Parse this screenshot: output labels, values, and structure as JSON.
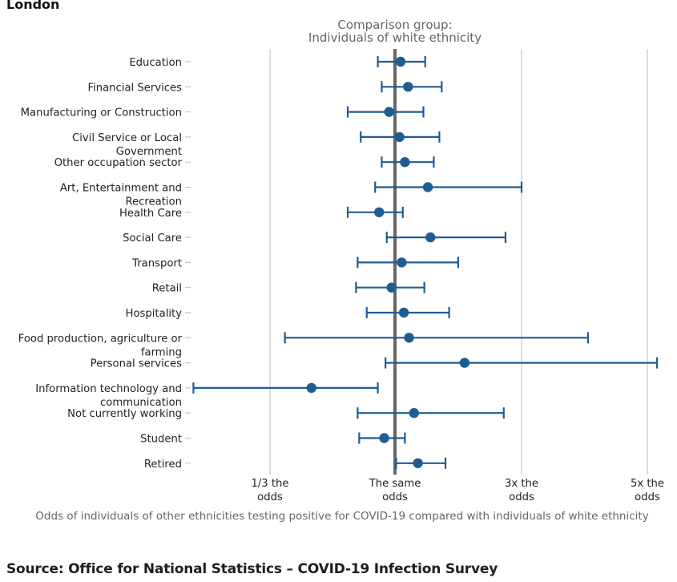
{
  "region_title": "London",
  "source": "Source: Office for National Statistics – COVID-19 Infection Survey",
  "chart_data": {
    "type": "scatter",
    "subtype": "forest-plot",
    "title": "London",
    "reference_label": [
      "Comparison group:",
      "Individuals of white ethnicity"
    ],
    "reference_value": 1,
    "xlabel": "Odds of individuals of other ethnicities testing positive for COVID-19 compared with individuals of white ethnicity",
    "ylabel": "",
    "x_scale": "odds-ratio (log-interpolated between ticks)",
    "x_ticks": [
      {
        "value": 0.3333,
        "label": [
          "1/3 the",
          "odds"
        ]
      },
      {
        "value": 1,
        "label": [
          "The same",
          "odds"
        ]
      },
      {
        "value": 3,
        "label": [
          "3x the",
          "odds"
        ]
      },
      {
        "value": 5,
        "label": [
          "5x the",
          "odds"
        ]
      }
    ],
    "grid": true,
    "colors": {
      "marker": "#1f5c92",
      "reference_line": "#666666",
      "grid": "#cccccc"
    },
    "categories": [
      {
        "label": [
          "Education"
        ],
        "estimate": 1.05,
        "lower": 0.86,
        "upper": 1.3
      },
      {
        "label": [
          "Financial Services"
        ],
        "estimate": 1.12,
        "lower": 0.89,
        "upper": 1.5
      },
      {
        "label": [
          "Manufacturing or Construction"
        ],
        "estimate": 0.95,
        "lower": 0.66,
        "upper": 1.28
      },
      {
        "label": [
          "Civil Service or Local",
          "Government"
        ],
        "estimate": 1.04,
        "lower": 0.74,
        "upper": 1.47
      },
      {
        "label": [
          "Other occupation sector"
        ],
        "estimate": 1.09,
        "lower": 0.89,
        "upper": 1.4
      },
      {
        "label": [
          "Art, Entertainment and",
          "Recreation"
        ],
        "estimate": 1.33,
        "lower": 0.84,
        "upper": 3.0
      },
      {
        "label": [
          "Health Care"
        ],
        "estimate": 0.87,
        "lower": 0.66,
        "upper": 1.07
      },
      {
        "label": [
          "Social Care"
        ],
        "estimate": 1.36,
        "lower": 0.93,
        "upper": 2.61
      },
      {
        "label": [
          "Transport"
        ],
        "estimate": 1.06,
        "lower": 0.72,
        "upper": 1.73
      },
      {
        "label": [
          "Retail"
        ],
        "estimate": 0.97,
        "lower": 0.71,
        "upper": 1.29
      },
      {
        "label": [
          "Hospitality"
        ],
        "estimate": 1.08,
        "lower": 0.78,
        "upper": 1.6
      },
      {
        "label": [
          "Food production, agriculture or",
          "farming"
        ],
        "estimate": 1.13,
        "lower": 0.38,
        "upper": 3.93
      },
      {
        "label": [
          "Personal services"
        ],
        "estimate": 1.83,
        "lower": 0.92,
        "upper": 5.2
      },
      {
        "label": [
          "Information technology and",
          "communication"
        ],
        "estimate": 0.48,
        "lower": 0.17,
        "upper": 0.86
      },
      {
        "label": [
          "Not currently working"
        ],
        "estimate": 1.18,
        "lower": 0.72,
        "upper": 2.57
      },
      {
        "label": [
          "Student"
        ],
        "estimate": 0.91,
        "lower": 0.73,
        "upper": 1.09
      },
      {
        "label": [
          "Retired"
        ],
        "estimate": 1.22,
        "lower": 1.01,
        "upper": 1.55
      }
    ]
  }
}
